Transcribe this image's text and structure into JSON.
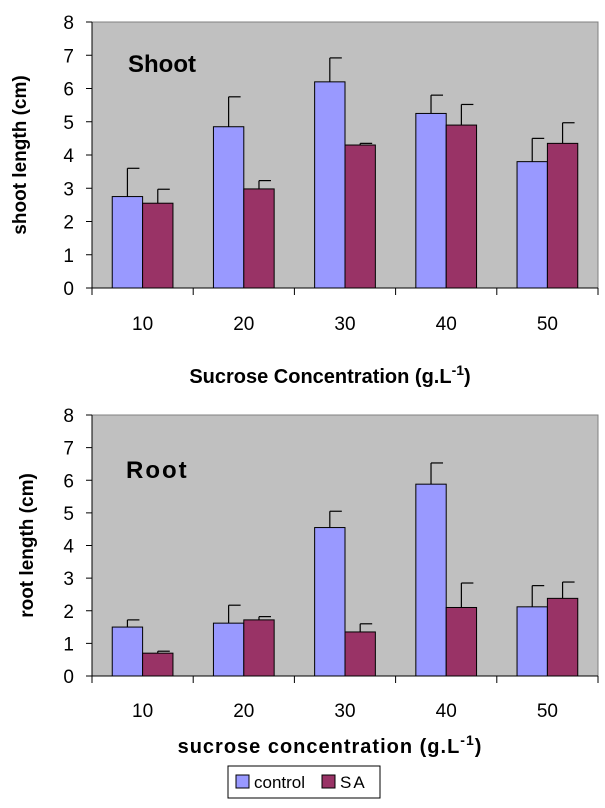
{
  "chart_data": [
    {
      "type": "bar",
      "categories": [
        "10",
        "20",
        "30",
        "40",
        "50"
      ],
      "series": [
        {
          "name": "control",
          "values": [
            2.75,
            4.85,
            6.2,
            5.25,
            3.8
          ],
          "errors": [
            0.85,
            0.9,
            0.72,
            0.55,
            0.7
          ]
        },
        {
          "name": "SA",
          "values": [
            2.55,
            2.98,
            4.3,
            4.9,
            4.35
          ],
          "errors": [
            0.42,
            0.25,
            0.05,
            0.62,
            0.62
          ]
        }
      ],
      "title": "Shoot",
      "xlabel": "Sucrose Concentration (g.L",
      "xlabel_sup": "-1",
      "xlabel_end": ")",
      "ylabel": "shoot length (cm)",
      "ylim": [
        0,
        8
      ],
      "yticks": [
        "0",
        "1",
        "2",
        "3",
        "4",
        "5",
        "6",
        "7",
        "8"
      ],
      "grid": false
    },
    {
      "type": "bar",
      "categories": [
        "10",
        "20",
        "30",
        "40",
        "50"
      ],
      "series": [
        {
          "name": "control",
          "values": [
            1.5,
            1.62,
            4.55,
            5.88,
            2.12
          ],
          "errors": [
            0.22,
            0.55,
            0.5,
            0.65,
            0.65
          ]
        },
        {
          "name": "SA",
          "values": [
            0.7,
            1.72,
            1.35,
            2.1,
            2.38
          ],
          "errors": [
            0.06,
            0.1,
            0.25,
            0.75,
            0.5
          ]
        }
      ],
      "title": "Root",
      "xlabel": "sucrose concentration (g.L",
      "xlabel_sup": "-1",
      "xlabel_end": ")",
      "ylabel": "root length (cm)",
      "ylim": [
        0,
        8
      ],
      "yticks": [
        "0",
        "1",
        "2",
        "3",
        "4",
        "5",
        "6",
        "7",
        "8"
      ],
      "grid": false
    }
  ],
  "legend": {
    "placement": "bottom",
    "items": [
      "control",
      "SA"
    ]
  },
  "colors": {
    "control": "#9999ff",
    "SA": "#993366",
    "plot_area": "#c0c0c0"
  }
}
